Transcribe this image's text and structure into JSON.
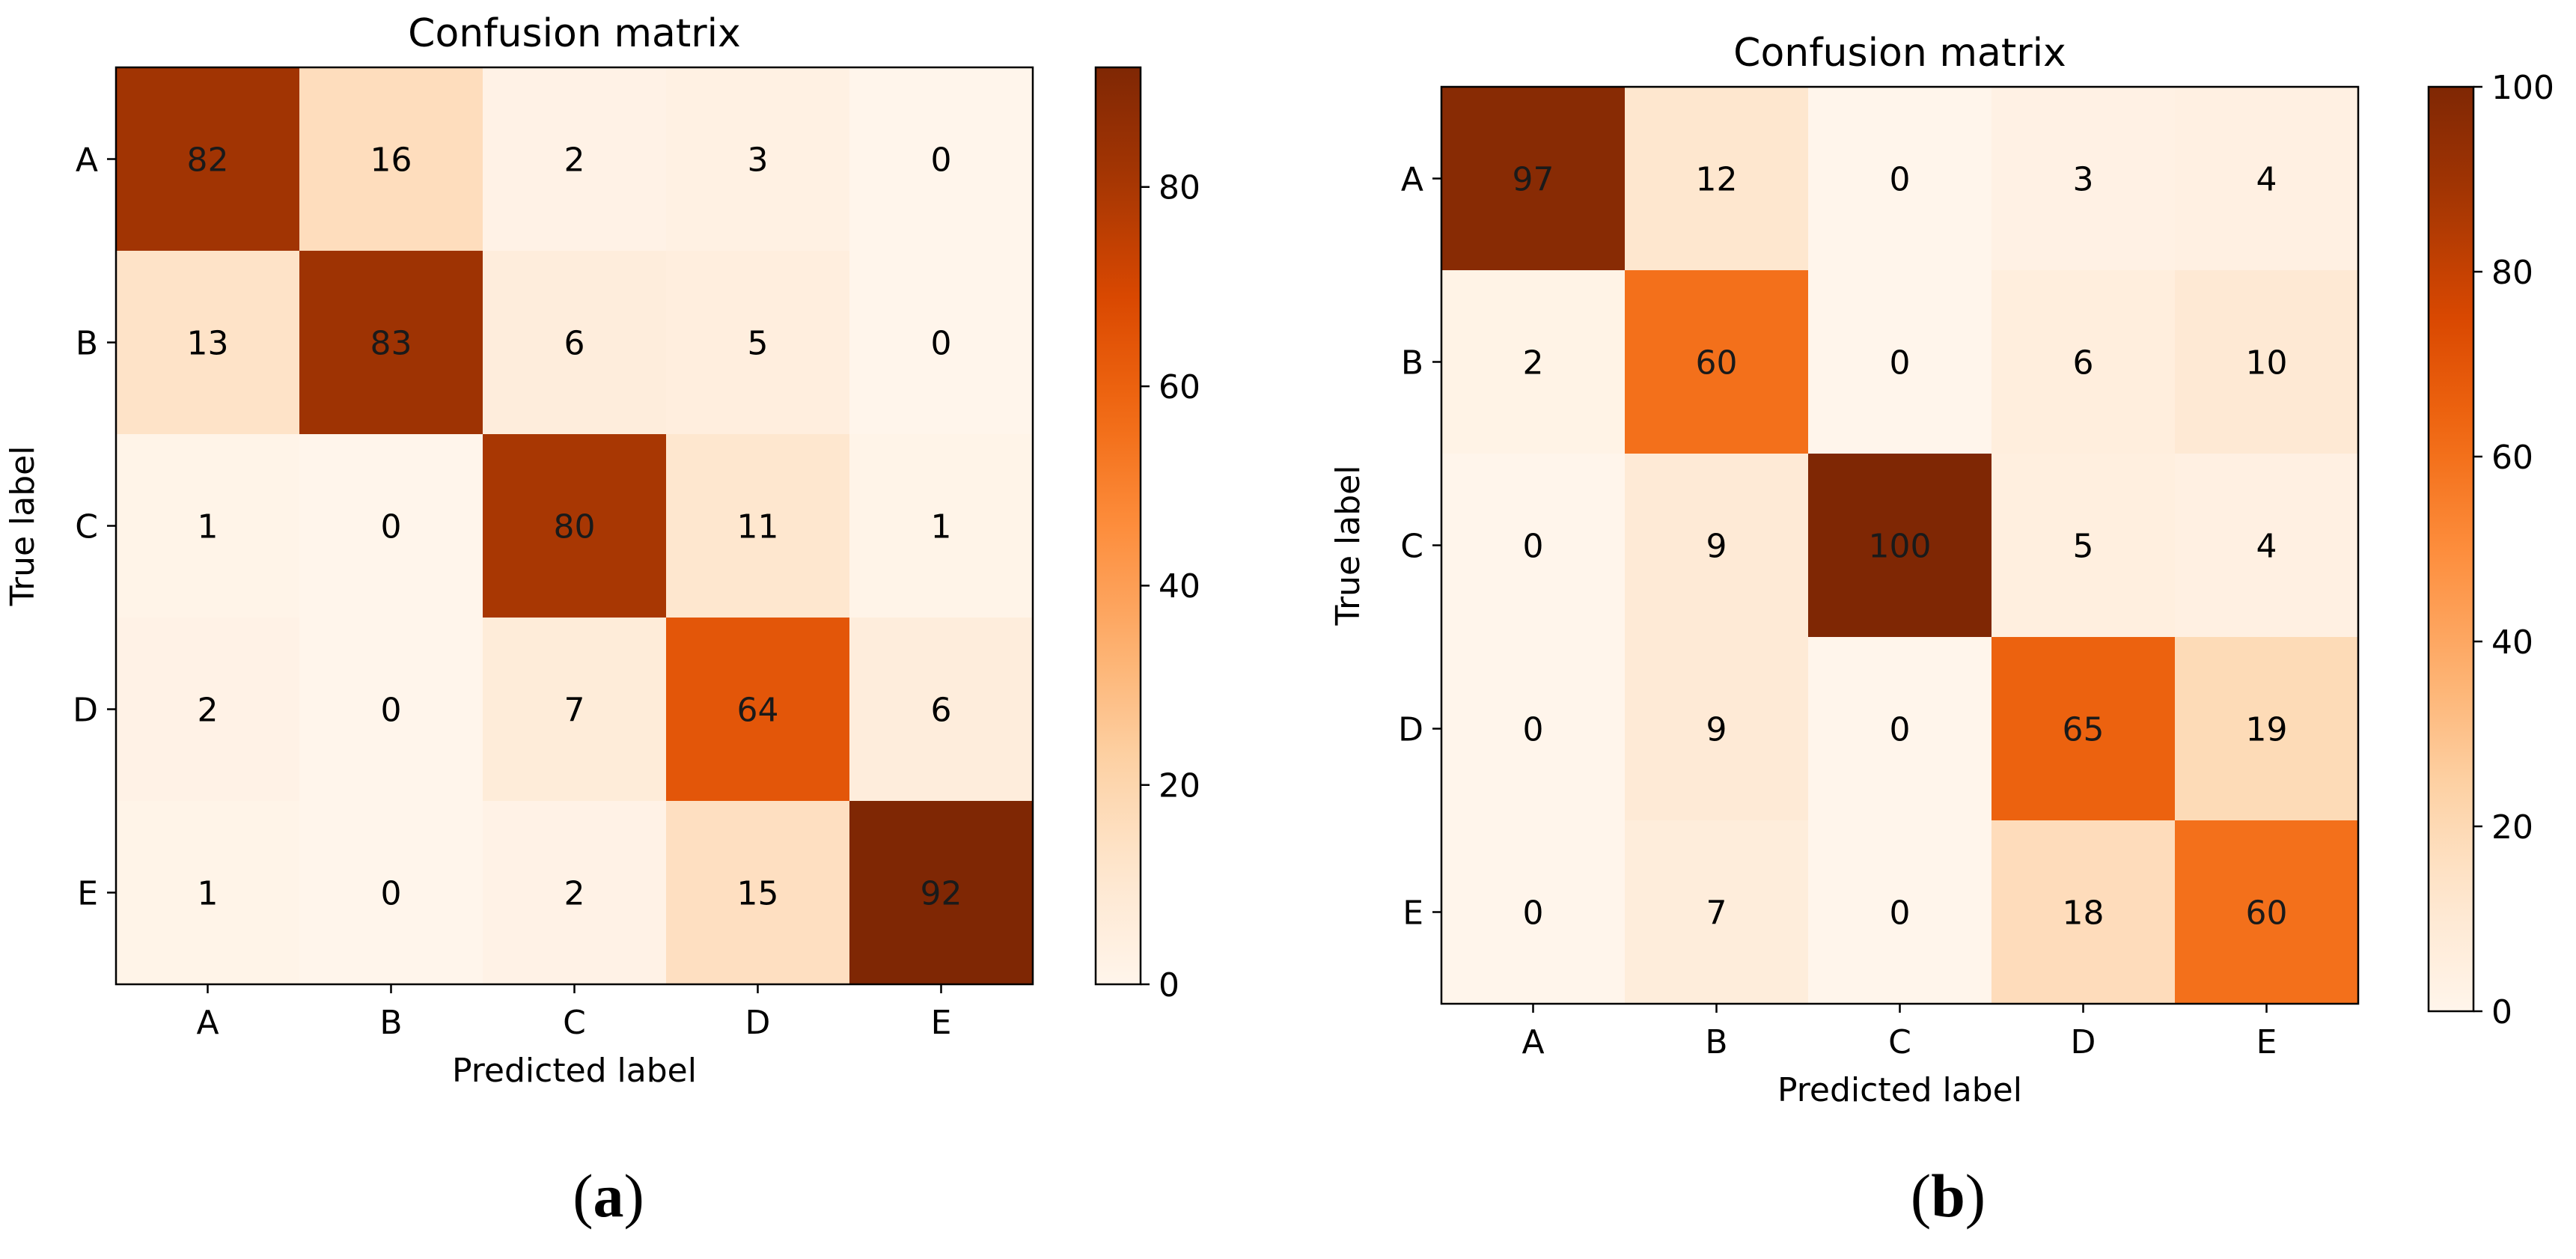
{
  "chart_data": [
    {
      "type": "heatmap",
      "panel_label": "a",
      "title": "Confusion matrix",
      "xlabel": "Predicted label",
      "ylabel": "True label",
      "x_categories": [
        "A",
        "B",
        "C",
        "D",
        "E"
      ],
      "y_categories": [
        "A",
        "B",
        "C",
        "D",
        "E"
      ],
      "values": [
        [
          82,
          16,
          2,
          3,
          0
        ],
        [
          13,
          83,
          6,
          5,
          0
        ],
        [
          1,
          0,
          80,
          11,
          1
        ],
        [
          2,
          0,
          7,
          64,
          6
        ],
        [
          1,
          0,
          2,
          15,
          92
        ]
      ],
      "colorbar": {
        "min": 0,
        "max": 92,
        "ticks": [
          0,
          20,
          40,
          60,
          80
        ]
      }
    },
    {
      "type": "heatmap",
      "panel_label": "b",
      "title": "Confusion matrix",
      "xlabel": "Predicted label",
      "ylabel": "True label",
      "x_categories": [
        "A",
        "B",
        "C",
        "D",
        "E"
      ],
      "y_categories": [
        "A",
        "B",
        "C",
        "D",
        "E"
      ],
      "values": [
        [
          97,
          12,
          0,
          3,
          4
        ],
        [
          2,
          60,
          0,
          6,
          10
        ],
        [
          0,
          9,
          100,
          5,
          4
        ],
        [
          0,
          9,
          0,
          65,
          19
        ],
        [
          0,
          7,
          0,
          18,
          60
        ]
      ],
      "colorbar": {
        "min": 0,
        "max": 100,
        "ticks": [
          0,
          20,
          40,
          60,
          80,
          100
        ]
      }
    }
  ],
  "colormap": {
    "name": "Oranges",
    "stops": [
      "#fff5eb",
      "#fee6ce",
      "#fdd0a2",
      "#fdae6b",
      "#fd8d3c",
      "#f16913",
      "#d94801",
      "#a63603",
      "#7f2704"
    ]
  }
}
